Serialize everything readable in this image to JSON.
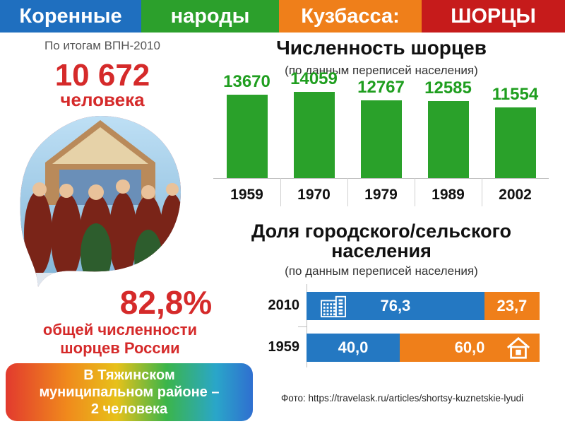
{
  "banner": {
    "seg1": {
      "text": "Коренные",
      "color": "#1f6fbf"
    },
    "seg2": {
      "text": "народы",
      "color": "#2ca02c"
    },
    "seg3": {
      "text": "Кузбасса:",
      "color": "#ef7f1a"
    },
    "seg4": {
      "text": "ШОРЦЫ",
      "color": "#c61b1b"
    }
  },
  "left": {
    "census_caption": "По итогам ВПН-2010",
    "population": "10 672",
    "population_unit": "человека",
    "share": "82,8%",
    "share_caption_line1": "общей численности",
    "share_caption_line2": "шорцев России",
    "district_line1": "В Тяжинском",
    "district_line2": "муниципальном районе –",
    "district_line3": "2 человека"
  },
  "source": "Фото: https://travelask.ru/articles/shortsy-kuznetskie-lyudi",
  "chart_data": [
    {
      "type": "bar",
      "title": "Численность шорцев",
      "subtitle": "(по данным переписей населения)",
      "categories": [
        "1959",
        "1970",
        "1979",
        "1989",
        "2002"
      ],
      "values": [
        13670,
        14059,
        12767,
        12585,
        11554
      ],
      "ylim": [
        0,
        18500
      ],
      "bar_color": "#2aa12a",
      "value_color": "#1f9e1f",
      "grid": false
    },
    {
      "type": "bar",
      "orientation": "horizontal",
      "stacked": true,
      "title_line1": "Доля городского/сельского",
      "title_line2": "населения",
      "subtitle": "(по данным переписей населения)",
      "categories": [
        "2010",
        "1959"
      ],
      "series": [
        {
          "values": [
            76.3,
            40.0
          ],
          "labels": [
            "76,3",
            "40,0"
          ],
          "color": "#2478c2",
          "icon": "building-icon"
        },
        {
          "values": [
            23.7,
            60.0
          ],
          "labels": [
            "23,7",
            "60,0"
          ],
          "color": "#ef7f1a",
          "icon": "house-icon"
        }
      ],
      "xlim": [
        0,
        100
      ]
    }
  ]
}
